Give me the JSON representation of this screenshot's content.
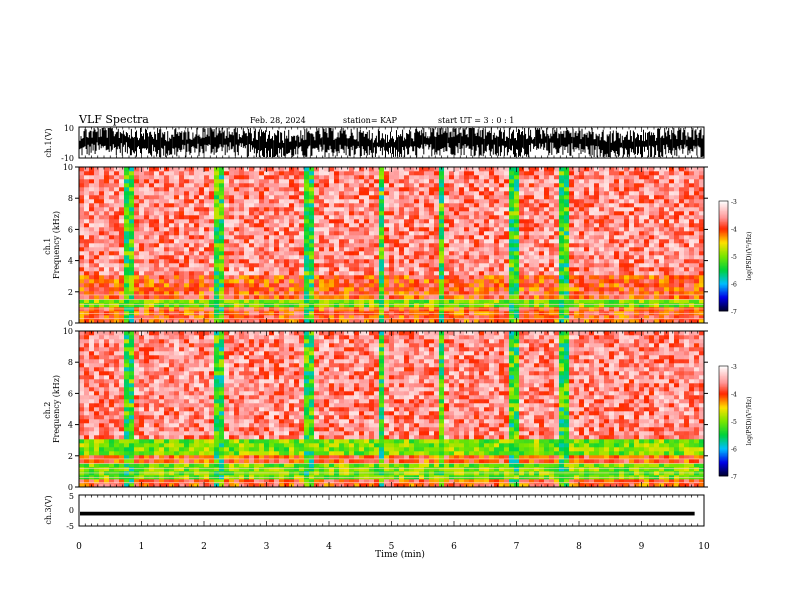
{
  "header": {
    "title": "VLF Spectra",
    "date": "Feb. 28, 2024",
    "station": "station= KAP",
    "start": "start  UT =   3 : 0  : 1"
  },
  "chart_data": [
    {
      "type": "line",
      "panel": "ch1-waveform",
      "ylabel": "ch.1(V)",
      "ylim": [
        -10,
        10
      ],
      "yticks": [
        "10",
        "-10"
      ],
      "color": "#000000"
    },
    {
      "type": "heatmap",
      "panel": "ch1-spectrogram",
      "ylabel": "ch.1\nFrequency (kHz)",
      "ylim": [
        0,
        10
      ],
      "yticks": [
        0,
        2,
        4,
        6,
        8,
        10
      ],
      "colorbar": {
        "label": "log(PSD)(V²/Hz)",
        "range": [
          -7,
          -3
        ],
        "ticks": [
          -3,
          -4,
          -5,
          -6,
          -7
        ]
      },
      "bands": [
        {
          "f": [
            3.2,
            10
          ],
          "level": "mid-high",
          "note": "speckled red/white"
        },
        {
          "f": [
            1.4,
            3.2
          ],
          "level": "high",
          "note": "red"
        },
        {
          "f": [
            1.0,
            1.5
          ],
          "level": "mid",
          "note": "yellow/green"
        },
        {
          "f": [
            0.0,
            1.0
          ],
          "level": "high",
          "note": "red with horizontal lines"
        }
      ],
      "broadband_events_min": [
        0.8,
        2.25,
        3.7,
        4.85,
        5.8,
        6.95,
        7.75
      ]
    },
    {
      "type": "heatmap",
      "panel": "ch2-spectrogram",
      "ylabel": "ch.2\nFrequency (kHz)",
      "ylim": [
        0,
        10
      ],
      "yticks": [
        0,
        2,
        4,
        6,
        8,
        10
      ],
      "colorbar": {
        "label": "log(PSD)(V²/Hz)",
        "range": [
          -7,
          -3
        ],
        "ticks": [
          -3,
          -4,
          -5,
          -6,
          -7
        ]
      },
      "bands": [
        {
          "f": [
            3.2,
            10
          ],
          "level": "mid-high",
          "note": "speckled red/white"
        },
        {
          "f": [
            2.0,
            3.2
          ],
          "level": "mid",
          "note": "yellow/green"
        },
        {
          "f": [
            1.5,
            2.0
          ],
          "level": "high",
          "note": "red"
        },
        {
          "f": [
            0.5,
            1.5
          ],
          "level": "mid",
          "note": "yellow/green"
        },
        {
          "f": [
            0.0,
            0.5
          ],
          "level": "high",
          "note": "red"
        }
      ],
      "broadband_events_min": [
        0.8,
        2.25,
        3.7,
        4.85,
        5.8,
        6.95,
        7.75
      ]
    },
    {
      "type": "line",
      "panel": "ch3-waveform",
      "ylabel": "ch.3(V)",
      "ylim": [
        -5,
        5
      ],
      "yticks": [
        "5",
        "0",
        "-5"
      ],
      "value_approx": [
        -1.6,
        -0.4
      ],
      "color": "#000000"
    }
  ],
  "xaxis": {
    "label": "Time (min)",
    "range": [
      0,
      10
    ],
    "ticks": [
      "0",
      "1",
      "2",
      "3",
      "4",
      "5",
      "6",
      "7",
      "8",
      "9",
      "10"
    ]
  }
}
